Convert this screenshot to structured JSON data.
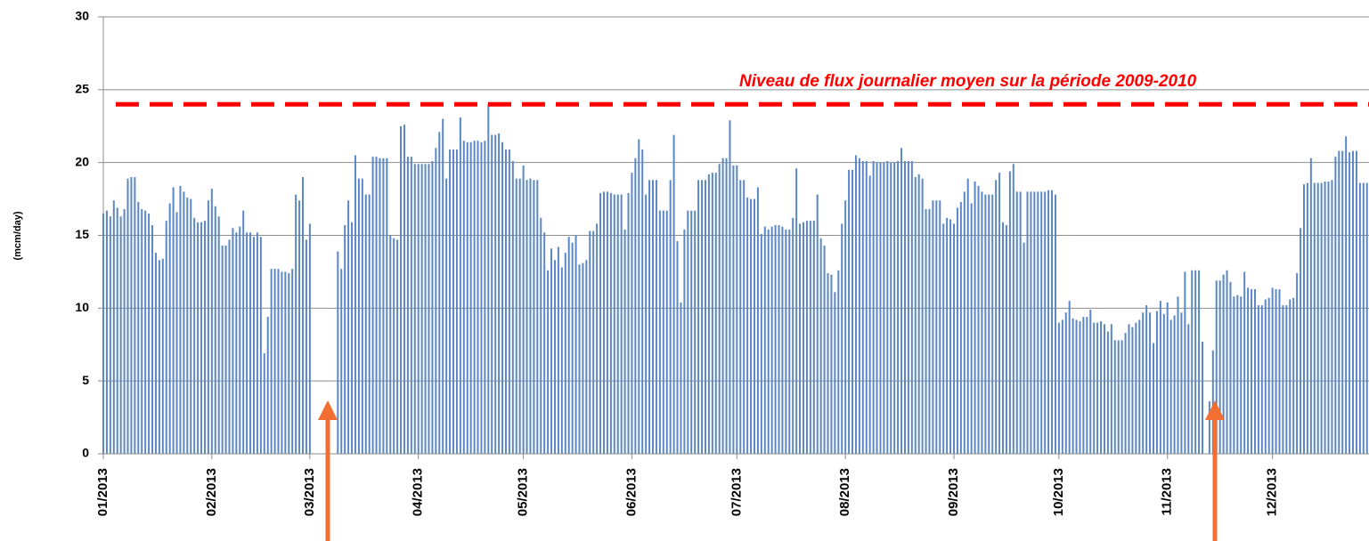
{
  "chart_data": {
    "type": "bar",
    "y_label": "(mcm/day)",
    "categories": [
      "01/2013",
      "02/2013",
      "03/2013",
      "04/2013",
      "05/2013",
      "06/2013",
      "07/2013",
      "08/2013",
      "09/2013",
      "10/2013",
      "11/2013",
      "12/2013"
    ],
    "values": [
      [
        16.5,
        16.7,
        16.3,
        17.4,
        16.9,
        16.3,
        16.8,
        18.9,
        19,
        19,
        17.3,
        16.8,
        16.7,
        16.5,
        15.7,
        13.8,
        13.3,
        13.4,
        16,
        17.2,
        18.3,
        16.6,
        18.4,
        18,
        17.6,
        17.5,
        16.2,
        15.9,
        15.9,
        16,
        17.4
      ],
      [
        18.2,
        17,
        16.3,
        14.3,
        14.3,
        14.7,
        15.5,
        15.2,
        15.6,
        16.7,
        15.2,
        15.2,
        14.9,
        15.2,
        14.9,
        6.9,
        9.4,
        12.7,
        12.7,
        12.7,
        12.5,
        12.5,
        12.4,
        12.7,
        17.8,
        17.4,
        19,
        14.7
      ],
      [
        15.8,
        0,
        0,
        0,
        0,
        0,
        0,
        0,
        13.9,
        12.7,
        15.7,
        17.4,
        15.9,
        20.5,
        18.9,
        18.9,
        17.8,
        17.8,
        20.4,
        20.4,
        20.3,
        20.3,
        20.3,
        15,
        14.8,
        14.7,
        22.5,
        22.6,
        20.4,
        20.4,
        19.9
      ],
      [
        19.9,
        19.9,
        19.9,
        19.9,
        20.1,
        21,
        22.1,
        23,
        18.9,
        20.9,
        20.9,
        20.9,
        23.1,
        21.5,
        21.4,
        21.4,
        21.5,
        21.5,
        21.4,
        21.5,
        24,
        21.9,
        21.9,
        22,
        21.4,
        20.9,
        20.9,
        20.1,
        18.9,
        18.9
      ],
      [
        19.8,
        18.8,
        18.9,
        18.8,
        18.8,
        16.2,
        15.2,
        12.6,
        14.1,
        13.3,
        14.2,
        12.8,
        13.8,
        14.9,
        14.5,
        15,
        13,
        13.1,
        13.3,
        15.3,
        15.3,
        15.8,
        17.9,
        18,
        18,
        17.9,
        17.8,
        17.8,
        17.8,
        15.4,
        17.9
      ],
      [
        19.3,
        20.3,
        21.6,
        20.9,
        17.8,
        18.8,
        18.8,
        18.8,
        16.7,
        16.7,
        16.7,
        18.8,
        21.9,
        14.6,
        10.4,
        15.4,
        16.7,
        16.7,
        16.7,
        18.8,
        18.8,
        18.8,
        19.2,
        19.3,
        19.3,
        19.9,
        20.3,
        20.3,
        22.9,
        19.8
      ],
      [
        19.8,
        18.8,
        18.8,
        17.6,
        17.5,
        17.5,
        18.3,
        15.1,
        15.6,
        15.4,
        15.6,
        15.7,
        15.7,
        15.6,
        15.4,
        15.4,
        16.2,
        19.6,
        15.8,
        15.9,
        16,
        16,
        16,
        17.8,
        14.8,
        14.3,
        12.4,
        12.3,
        11.1,
        12.6,
        15.8
      ],
      [
        17.4,
        19.5,
        19.5,
        20.5,
        20.3,
        20.1,
        20.1,
        19.1,
        20.1,
        20,
        20,
        20,
        20.1,
        20,
        20,
        20.1,
        21,
        20.1,
        20.1,
        20.1,
        19,
        19.2,
        18.9,
        16.8,
        16.8,
        17.4,
        17.4,
        17.4,
        15.8,
        16.2,
        16.1
      ],
      [
        15.8,
        16.9,
        17.3,
        18,
        18.9,
        17.2,
        18.7,
        18.4,
        18,
        17.8,
        17.8,
        17.8,
        18.8,
        19.3,
        15.9,
        15.7,
        19.4,
        19.9,
        18,
        18,
        14.5,
        18,
        18,
        18,
        18,
        18,
        18,
        18.1,
        18.1,
        17.8
      ],
      [
        9,
        9.2,
        9.7,
        10.5,
        9.3,
        9.2,
        9.1,
        9.4,
        9.4,
        9.9,
        9,
        9,
        9.1,
        8.9,
        8.4,
        8.9,
        7.8,
        7.8,
        7.8,
        8.3,
        8.9,
        8.7,
        9,
        9.2,
        9.7,
        10.2,
        9.7,
        7.6,
        9.8,
        10.5,
        9.6
      ],
      [
        10.4,
        9.2,
        9.5,
        10.8,
        9.7,
        12.5,
        8.9,
        12.6,
        12.6,
        12.6,
        7.7,
        0,
        3.6,
        7.1,
        11.9,
        11.9,
        12.3,
        12.6,
        11.8,
        10.8,
        10.9,
        10.8,
        12.5,
        11.4,
        11.3,
        11.3,
        10.2,
        10.2,
        10.6,
        10.7
      ],
      [
        11.4,
        11.3,
        11.3,
        10.2,
        10.2,
        10.6,
        10.7,
        12.4,
        15.5,
        18.5,
        18.6,
        20.3,
        18.6,
        18.6,
        18.6,
        18.7,
        18.7,
        18.8,
        20.4,
        20.8,
        20.8,
        21.8,
        20.7,
        20.8,
        20.8,
        18.6,
        18.6,
        18.6
      ]
    ],
    "color": "#5b87c5",
    "reference_line": {
      "value": 24,
      "label": "Niveau de flux journalier moyen sur la période 2009-2010",
      "color": "#ff0000"
    },
    "ylim": [
      0,
      30
    ],
    "yticks": [
      0,
      5,
      10,
      15,
      20,
      25,
      30
    ],
    "grid": true
  }
}
